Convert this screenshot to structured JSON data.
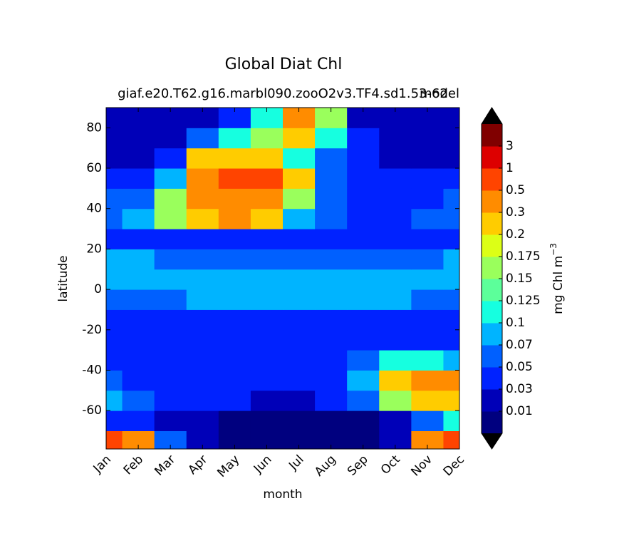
{
  "chart_data": {
    "type": "contourf",
    "title": "Global Diat Chl",
    "subtitle": "giaf.e20.T62.g16.marbl090.zooO2v3.TF4.sd1.53-62",
    "subtitle_right": "model",
    "xlabel": "month",
    "ylabel": "latitude",
    "categories": [
      "Jan",
      "Feb",
      "Mar",
      "Apr",
      "May",
      "Jun",
      "Jul",
      "Aug",
      "Sep",
      "Oct",
      "Nov",
      "Dec"
    ],
    "y": [
      -75,
      -65,
      -55,
      -45,
      -35,
      -25,
      -15,
      -5,
      5,
      15,
      25,
      35,
      45,
      55,
      65,
      75,
      85
    ],
    "ylim": [
      -79,
      90
    ],
    "yticks": [
      -60,
      -40,
      -20,
      0,
      20,
      40,
      60,
      80
    ],
    "z": [
      [
        0.6,
        0.3,
        0.06,
        0.02,
        0.005,
        0.005,
        0.005,
        0.005,
        0.005,
        0.01,
        0.3,
        0.6
      ],
      [
        0.04,
        0.03,
        0.02,
        0.01,
        0.005,
        0.005,
        0.005,
        0.005,
        0.005,
        0.01,
        0.06,
        0.1
      ],
      [
        0.08,
        0.06,
        0.04,
        0.03,
        0.03,
        0.02,
        0.02,
        0.03,
        0.05,
        0.15,
        0.25,
        0.2
      ],
      [
        0.05,
        0.04,
        0.04,
        0.04,
        0.03,
        0.03,
        0.03,
        0.04,
        0.08,
        0.25,
        0.35,
        0.3
      ],
      [
        0.04,
        0.03,
        0.03,
        0.03,
        0.03,
        0.03,
        0.03,
        0.04,
        0.06,
        0.1,
        0.12,
        0.08
      ],
      [
        0.03,
        0.03,
        0.03,
        0.03,
        0.03,
        0.03,
        0.03,
        0.03,
        0.03,
        0.04,
        0.04,
        0.03
      ],
      [
        0.04,
        0.04,
        0.04,
        0.04,
        0.04,
        0.04,
        0.04,
        0.04,
        0.04,
        0.04,
        0.04,
        0.04
      ],
      [
        0.06,
        0.06,
        0.06,
        0.07,
        0.08,
        0.08,
        0.08,
        0.09,
        0.08,
        0.07,
        0.06,
        0.06
      ],
      [
        0.08,
        0.08,
        0.08,
        0.08,
        0.08,
        0.08,
        0.08,
        0.08,
        0.08,
        0.08,
        0.08,
        0.08
      ],
      [
        0.09,
        0.08,
        0.06,
        0.06,
        0.06,
        0.06,
        0.06,
        0.06,
        0.06,
        0.06,
        0.06,
        0.07
      ],
      [
        0.04,
        0.04,
        0.04,
        0.04,
        0.04,
        0.03,
        0.03,
        0.03,
        0.03,
        0.04,
        0.04,
        0.04
      ],
      [
        0.06,
        0.07,
        0.15,
        0.25,
        0.3,
        0.2,
        0.08,
        0.05,
        0.04,
        0.04,
        0.05,
        0.06
      ],
      [
        0.05,
        0.06,
        0.15,
        0.35,
        0.4,
        0.35,
        0.15,
        0.06,
        0.04,
        0.04,
        0.04,
        0.05
      ],
      [
        0.03,
        0.04,
        0.08,
        0.3,
        0.5,
        0.5,
        0.25,
        0.06,
        0.04,
        0.04,
        0.03,
        0.03
      ],
      [
        0.02,
        0.02,
        0.04,
        0.22,
        0.25,
        0.2,
        0.12,
        0.06,
        0.03,
        0.02,
        0.02,
        0.02
      ],
      [
        0.01,
        0.01,
        0.02,
        0.05,
        0.1,
        0.15,
        0.2,
        0.1,
        0.03,
        0.01,
        0.01,
        0.01
      ],
      [
        0.01,
        0.01,
        0.01,
        0.02,
        0.04,
        0.1,
        0.4,
        0.15,
        0.02,
        0.01,
        0.01,
        0.01
      ]
    ],
    "colorbar": {
      "label": "mg Chl m",
      "label_exponent": "−3",
      "levels": [
        0.01,
        0.03,
        0.05,
        0.07,
        0.1,
        0.125,
        0.15,
        0.175,
        0.2,
        0.3,
        0.5,
        1,
        3
      ],
      "colors": [
        "#00007f",
        "#0000b8",
        "#0022ff",
        "#0060ff",
        "#00b4ff",
        "#16ffe0",
        "#5cff9a",
        "#9aff5c",
        "#dcff16",
        "#ffcc00",
        "#ff8c00",
        "#ff4400",
        "#dd0000",
        "#800000"
      ],
      "extend_color": "#000000"
    }
  }
}
